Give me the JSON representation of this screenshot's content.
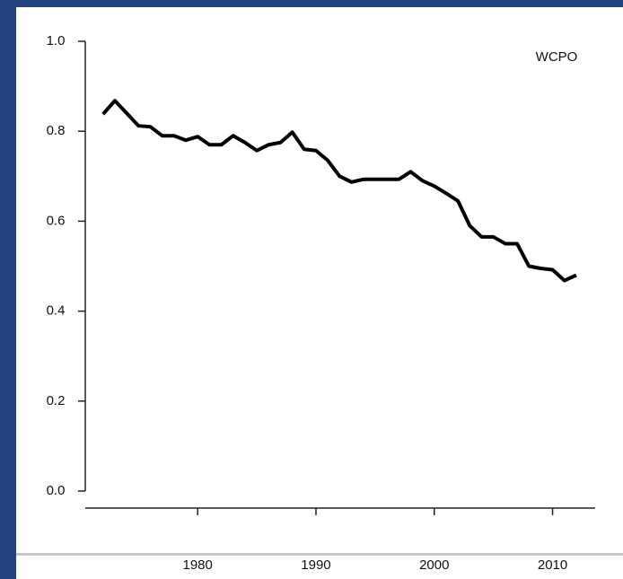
{
  "chart_data": {
    "type": "line",
    "annotation": "WCPO",
    "x": [
      1972,
      1973,
      1974,
      1975,
      1976,
      1977,
      1978,
      1979,
      1980,
      1981,
      1982,
      1983,
      1984,
      1985,
      1986,
      1987,
      1988,
      1989,
      1990,
      1991,
      1992,
      1993,
      1994,
      1995,
      1996,
      1997,
      1998,
      1999,
      2000,
      2001,
      2002,
      2003,
      2004,
      2005,
      2006,
      2007,
      2008,
      2009,
      2010,
      2011,
      2012
    ],
    "series": [
      {
        "name": "WCPO",
        "color": "#000000",
        "values": [
          0.838,
          0.868,
          0.84,
          0.812,
          0.81,
          0.79,
          0.79,
          0.78,
          0.788,
          0.77,
          0.77,
          0.79,
          0.775,
          0.757,
          0.77,
          0.775,
          0.798,
          0.76,
          0.757,
          0.735,
          0.7,
          0.687,
          0.693,
          0.693,
          0.693,
          0.693,
          0.71,
          0.69,
          0.678,
          0.662,
          0.645,
          0.59,
          0.565,
          0.565,
          0.55,
          0.55,
          0.5,
          0.495,
          0.492,
          0.468,
          0.48
        ]
      }
    ],
    "xlim": [
      1970.5,
      2013.6
    ],
    "xticks": [
      1980,
      1990,
      2000,
      2010
    ],
    "ylim": [
      0,
      1
    ],
    "yticks": [
      {
        "value": 0,
        "label": "0.0"
      },
      {
        "value": 0.2,
        "label": "0.2"
      },
      {
        "value": 0.4,
        "label": "0.4"
      },
      {
        "value": 0.6,
        "label": "0.6"
      },
      {
        "value": 0.8,
        "label": "0.8"
      },
      {
        "value": 1,
        "label": "1.0"
      }
    ]
  }
}
